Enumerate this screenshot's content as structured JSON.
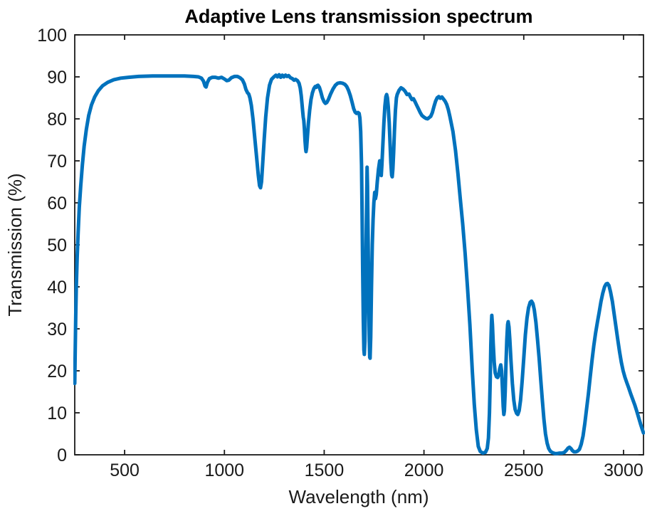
{
  "figure": {
    "background_color": "#ffffff"
  },
  "chart_data": {
    "type": "line",
    "title": "Adaptive Lens transmission spectrum",
    "xlabel": "Wavelength (nm)",
    "ylabel": "Transmission (%)",
    "xlim": [
      250,
      3100
    ],
    "ylim": [
      0,
      100
    ],
    "x_ticks": [
      500,
      1000,
      1500,
      2000,
      2500,
      3000
    ],
    "y_ticks": [
      0,
      10,
      20,
      30,
      40,
      50,
      60,
      70,
      80,
      90,
      100
    ],
    "grid": false,
    "box": true,
    "legend": null,
    "axis_color": "#1a1a1a",
    "series": [
      {
        "name": "transmission",
        "color": "#0072BD",
        "line_width": 5,
        "x": [
          250,
          252,
          255,
          258,
          262,
          267,
          273,
          280,
          288,
          297,
          308,
          320,
          334,
          350,
          368,
          390,
          415,
          445,
          480,
          520,
          570,
          640,
          720,
          800,
          845,
          870,
          885,
          895,
          903,
          908,
          915,
          925,
          940,
          955,
          970,
          985,
          1000,
          1012,
          1022,
          1035,
          1050,
          1065,
          1078,
          1090,
          1100,
          1108,
          1116,
          1122,
          1128,
          1135,
          1143,
          1152,
          1162,
          1170,
          1176,
          1181,
          1186,
          1192,
          1199,
          1207,
          1216,
          1226,
          1236,
          1248,
          1258,
          1266,
          1274,
          1282,
          1290,
          1298,
          1306,
          1314,
          1322,
          1331,
          1340,
          1349,
          1357,
          1366,
          1374,
          1380,
          1385,
          1389,
          1392,
          1395,
          1398,
          1401,
          1404,
          1407,
          1409,
          1412,
          1416,
          1421,
          1427,
          1434,
          1441,
          1448,
          1455,
          1460,
          1464,
          1469,
          1476,
          1483,
          1491,
          1499,
          1506,
          1513,
          1521,
          1532,
          1544,
          1556,
          1568,
          1580,
          1592,
          1604,
          1613,
          1622,
          1631,
          1640,
          1648,
          1655,
          1662,
          1669,
          1675,
          1679,
          1683,
          1687,
          1690,
          1693,
          1696,
          1699,
          1701,
          1704,
          1707,
          1710,
          1713,
          1715,
          1717,
          1720,
          1723,
          1726,
          1728,
          1730,
          1733,
          1737,
          1741,
          1745,
          1749,
          1753,
          1757,
          1761,
          1766,
          1772,
          1778,
          1783,
          1786,
          1789,
          1794,
          1799,
          1804,
          1809,
          1813,
          1817,
          1821,
          1826,
          1830,
          1834,
          1838,
          1841,
          1844,
          1848,
          1852,
          1857,
          1862,
          1866,
          1875,
          1885,
          1895,
          1905,
          1915,
          1925,
          1932,
          1940,
          1947,
          1955,
          1963,
          1972,
          1981,
          1990,
          2000,
          2010,
          2018,
          2026,
          2034,
          2042,
          2050,
          2058,
          2066,
          2074,
          2082,
          2090,
          2098,
          2106,
          2114,
          2122,
          2130,
          2145,
          2158,
          2170,
          2182,
          2194,
          2206,
          2218,
          2230,
          2242,
          2252,
          2262,
          2272,
          2282,
          2295,
          2308,
          2317,
          2323,
          2328,
          2332,
          2335,
          2338,
          2340,
          2343,
          2347,
          2352,
          2357,
          2363,
          2369,
          2374,
          2380,
          2385,
          2389,
          2393,
          2397,
          2400,
          2403,
          2407,
          2411,
          2415,
          2419,
          2422,
          2426,
          2430,
          2436,
          2443,
          2450,
          2457,
          2464,
          2470,
          2477,
          2484,
          2492,
          2500,
          2508,
          2516,
          2524,
          2532,
          2539,
          2546,
          2553,
          2561,
          2569,
          2577,
          2585,
          2593,
          2601,
          2609,
          2617,
          2625,
          2634,
          2644,
          2656,
          2668,
          2680,
          2692,
          2704,
          2714,
          2722,
          2729,
          2736,
          2744,
          2752,
          2761,
          2770,
          2779,
          2788,
          2797,
          2806,
          2815,
          2824,
          2833,
          2842,
          2851,
          2860,
          2869,
          2878,
          2887,
          2896,
          2905,
          2913,
          2920,
          2927,
          2935,
          2944,
          2953,
          2962,
          2971,
          2980,
          2989,
          2998,
          3007,
          3016,
          3026,
          3036,
          3046,
          3056,
          3066,
          3076,
          3086,
          3093,
          3100
        ],
        "y": [
          17,
          24,
          33,
          40,
          47,
          53,
          59,
          64,
          69,
          73.5,
          77.5,
          80.8,
          83.3,
          85.2,
          86.7,
          87.9,
          88.7,
          89.3,
          89.7,
          89.9,
          90.1,
          90.2,
          90.2,
          90.2,
          90.1,
          90.0,
          89.7,
          89.0,
          87.8,
          87.6,
          88.7,
          89.6,
          89.9,
          89.9,
          89.7,
          89.9,
          89.5,
          89.1,
          89.2,
          89.8,
          90.1,
          90.1,
          89.8,
          89.3,
          88.3,
          87.0,
          86.2,
          85.9,
          85.0,
          83.2,
          80.0,
          75.5,
          70.5,
          66.5,
          64.1,
          63.6,
          65.0,
          69.5,
          75.0,
          80.5,
          85.0,
          88.0,
          89.4,
          90.0,
          90.4,
          90.0,
          90.5,
          89.9,
          90.4,
          90.0,
          90.4,
          90.1,
          90.3,
          89.8,
          89.6,
          89.2,
          89.4,
          89.1,
          88.5,
          87.3,
          85.5,
          83.5,
          81.8,
          80.4,
          79.6,
          77.5,
          74.8,
          72.8,
          72.2,
          73.2,
          75.8,
          79.0,
          82.0,
          84.6,
          86.2,
          87.2,
          87.7,
          87.5,
          87.9,
          88.0,
          87.5,
          86.4,
          85.0,
          84.1,
          83.7,
          83.9,
          84.6,
          85.9,
          87.1,
          88.0,
          88.5,
          88.6,
          88.5,
          88.2,
          87.7,
          86.8,
          85.5,
          83.9,
          82.4,
          81.6,
          81.3,
          81.5,
          81.3,
          80.2,
          77.0,
          69.0,
          57.0,
          44.0,
          32.0,
          25.0,
          23.9,
          27.0,
          36.0,
          50.0,
          62.0,
          68.5,
          64.0,
          52.0,
          38.0,
          27.0,
          23.2,
          23.0,
          28.0,
          40.0,
          50.0,
          56.0,
          60.0,
          62.5,
          61.0,
          62.0,
          65.0,
          68.0,
          70.0,
          68.0,
          66.5,
          69.0,
          74.0,
          79.0,
          83.0,
          85.3,
          85.8,
          85.0,
          83.0,
          79.0,
          74.0,
          69.5,
          66.6,
          66.2,
          68.0,
          72.0,
          77.0,
          82.0,
          85.0,
          85.8,
          86.8,
          87.4,
          87.1,
          86.6,
          85.8,
          85.9,
          85.2,
          84.6,
          84.8,
          84.1,
          83.3,
          82.4,
          81.5,
          80.8,
          80.4,
          80.1,
          80.0,
          80.3,
          80.6,
          81.5,
          82.9,
          84.2,
          85.0,
          85.3,
          84.9,
          85.2,
          84.7,
          84.2,
          83.4,
          82.2,
          80.5,
          77.0,
          72.5,
          67.0,
          61.0,
          55.0,
          48.0,
          40.0,
          31.0,
          20.0,
          12.0,
          6.0,
          2.0,
          0.8,
          0.4,
          0.6,
          1.5,
          4.0,
          10.0,
          18.0,
          26.0,
          31.5,
          33.2,
          31.0,
          26.5,
          22.0,
          19.5,
          18.6,
          18.4,
          19.0,
          20.5,
          21.4,
          20.0,
          16.0,
          11.5,
          9.6,
          10.5,
          15.0,
          21.5,
          27.5,
          31.0,
          31.7,
          30.5,
          27.5,
          22.5,
          17.0,
          13.0,
          10.8,
          9.9,
          9.6,
          10.5,
          13.0,
          17.5,
          23.0,
          28.5,
          32.5,
          35.0,
          36.3,
          36.6,
          36.0,
          34.5,
          31.5,
          27.5,
          23.0,
          18.0,
          13.0,
          8.5,
          5.0,
          2.8,
          1.5,
          0.8,
          0.5,
          0.3,
          0.3,
          0.4,
          0.4,
          0.6,
          1.1,
          1.6,
          1.8,
          1.5,
          1.0,
          0.7,
          0.7,
          0.9,
          1.3,
          2.5,
          4.5,
          7.5,
          11.0,
          14.5,
          18.5,
          22.5,
          26.0,
          29.0,
          31.5,
          34.0,
          36.5,
          38.5,
          40.0,
          40.7,
          40.8,
          40.3,
          38.8,
          36.5,
          33.5,
          30.5,
          27.5,
          24.5,
          22.0,
          20.0,
          18.5,
          17.2,
          15.9,
          14.5,
          13.2,
          11.9,
          10.4,
          8.8,
          7.2,
          6.2,
          5.2
        ]
      }
    ]
  }
}
